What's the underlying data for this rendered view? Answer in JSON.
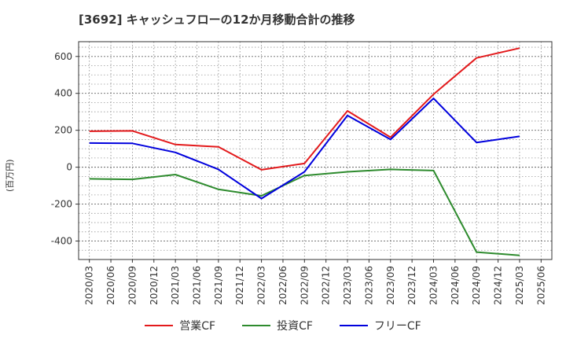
{
  "chart_data": {
    "type": "line",
    "title": "[3692]  キャッシュフローの12か月移動合計の推移",
    "ylabel": "(百万円)",
    "xlabel": "",
    "categories": [
      "2020/03",
      "2020/06",
      "2020/09",
      "2020/12",
      "2021/03",
      "2021/06",
      "2021/09",
      "2021/12",
      "2022/03",
      "2022/06",
      "2022/09",
      "2022/12",
      "2023/03",
      "2023/06",
      "2023/09",
      "2023/12",
      "2024/03",
      "2024/06",
      "2024/09",
      "2024/12",
      "2025/03",
      "2025/06"
    ],
    "ylim": [
      -500,
      680
    ],
    "yticks": [
      600,
      400,
      200,
      0,
      -200,
      -400
    ],
    "ytick_labels": [
      "600",
      "400",
      "200",
      "0",
      "-200",
      "-400"
    ],
    "grid": true,
    "legend_position": "bottom",
    "series": [
      {
        "name": "営業CF",
        "color": "#e31a1c",
        "points": [
          [
            "2020/03",
            195
          ],
          [
            "2020/09",
            197
          ],
          [
            "2021/03",
            123
          ],
          [
            "2021/09",
            110
          ],
          [
            "2022/03",
            -14
          ],
          [
            "2022/09",
            20
          ],
          [
            "2023/03",
            305
          ],
          [
            "2023/09",
            162
          ],
          [
            "2024/03",
            395
          ],
          [
            "2024/09",
            592
          ],
          [
            "2025/03",
            645
          ]
        ]
      },
      {
        "name": "投資CF",
        "color": "#2e8b2e",
        "points": [
          [
            "2020/03",
            -63
          ],
          [
            "2020/09",
            -66
          ],
          [
            "2021/03",
            -40
          ],
          [
            "2021/09",
            -120
          ],
          [
            "2022/03",
            -155
          ],
          [
            "2022/09",
            -45
          ],
          [
            "2023/03",
            -25
          ],
          [
            "2023/09",
            -12
          ],
          [
            "2024/03",
            -18
          ],
          [
            "2024/09",
            -460
          ],
          [
            "2025/03",
            -478
          ]
        ]
      },
      {
        "name": "フリーCF",
        "color": "#0000dd",
        "points": [
          [
            "2020/03",
            131
          ],
          [
            "2020/09",
            129
          ],
          [
            "2021/03",
            80
          ],
          [
            "2021/09",
            -12
          ],
          [
            "2022/03",
            -170
          ],
          [
            "2022/09",
            -25
          ],
          [
            "2023/03",
            280
          ],
          [
            "2023/09",
            150
          ],
          [
            "2024/03",
            373
          ],
          [
            "2024/09",
            134
          ],
          [
            "2025/03",
            167
          ]
        ]
      }
    ]
  }
}
